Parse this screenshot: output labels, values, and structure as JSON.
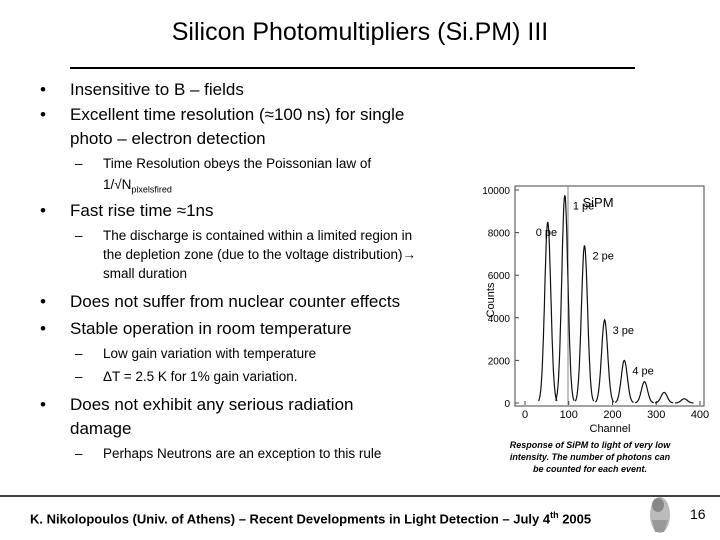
{
  "header": {
    "title": "Silicon Photomultipliers (Si.PM) III"
  },
  "bullets": [
    {
      "level": 1,
      "lines": [
        "Insensitive to B – fields"
      ]
    },
    {
      "level": 1,
      "lines": [
        "Excellent time resolution (≈100 ns) for single",
        "photo – electron detection"
      ]
    },
    {
      "level": 2,
      "lines": [
        "Time Resolution obeys the Poissonian law of"
      ],
      "formula": {
        "text": "1/√N",
        "subscript": "pixelsfired"
      }
    },
    {
      "level": 1,
      "lines": [
        "Fast rise time ≈1ns"
      ]
    },
    {
      "level": 2,
      "lines": [
        "The discharge is contained within a limited region in",
        "the depletion zone (due to the voltage distribution)→",
        "small duration"
      ]
    },
    {
      "level": 1,
      "lines": [
        "Does not suffer from nuclear counter effects"
      ]
    },
    {
      "level": 1,
      "lines": [
        "Stable operation in room temperature"
      ]
    },
    {
      "level": 2,
      "lines": [
        "Low gain variation with temperature"
      ]
    },
    {
      "level": 2,
      "lines": [
        "ΔT = 2.5 K for 1% gain variation."
      ]
    },
    {
      "level": 1,
      "lines": [
        "Does not exhibit any serious radiation",
        "damage"
      ]
    },
    {
      "level": 2,
      "lines": [
        "Perhaps Neutrons are an exception to this rule"
      ]
    }
  ],
  "figure": {
    "title": "SiPM",
    "xlabel": "Channel",
    "ylabel": "Counts",
    "xlim": [
      -20,
      400
    ],
    "ylim": [
      0,
      10000
    ],
    "xticks": [
      0,
      100,
      200,
      300,
      400
    ],
    "yticks": [
      0,
      2000,
      4000,
      6000,
      8000,
      10000
    ],
    "peaks": [
      {
        "channel": 52,
        "height": 8500,
        "label": "0 pe"
      },
      {
        "channel": 91,
        "height": 9750,
        "label": "1 pe"
      },
      {
        "channel": 136,
        "height": 7400,
        "label": "2 pe"
      },
      {
        "channel": 182,
        "height": 3900,
        "label": "3 pe"
      },
      {
        "channel": 227,
        "height": 2000,
        "label": "4 pe"
      },
      {
        "channel": 273,
        "height": 1000
      },
      {
        "channel": 318,
        "height": 500
      },
      {
        "channel": 364,
        "height": 200
      }
    ],
    "caption": [
      "Response of SiPM to light of very low",
      "intensity. The number of photons can",
      "be counted for each event."
    ]
  },
  "footer": {
    "text": "K. Nikolopoulos (Univ. of Athens) – Recent Developments in Light Detection – July 4",
    "superscript": "th",
    "year": "2005",
    "page": "16"
  }
}
